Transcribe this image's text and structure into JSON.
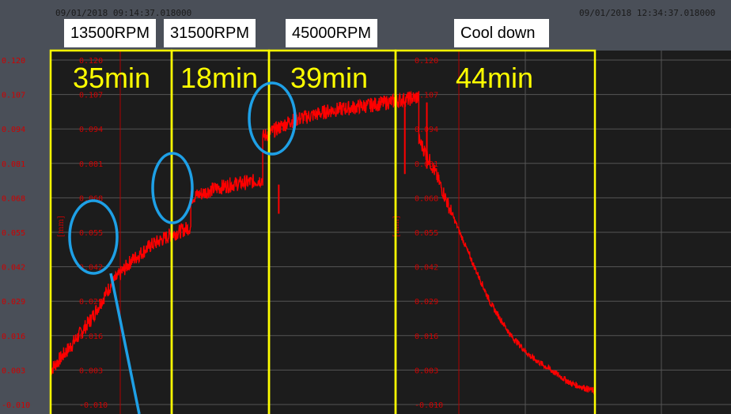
{
  "timestamps": {
    "start": "09/01/2018 09:14:37.018000",
    "end": "09/01/2018 12:34:37.018000"
  },
  "phases": [
    {
      "label": "13500RPM",
      "duration": "35min"
    },
    {
      "label": "31500RPM",
      "duration": "18min"
    },
    {
      "label": "45000RPM",
      "duration": "39min"
    },
    {
      "label": "Cool down",
      "duration": "44min"
    }
  ],
  "axis": {
    "outer_ticks": [
      "0.120",
      "0.107",
      "0.094",
      "0.081",
      "0.068",
      "0.055",
      "0.042",
      "0.029",
      "0.016",
      "0.003",
      "-0.010"
    ],
    "inner_ticks": [
      "0.120",
      "0.107",
      "0.094",
      "0.081",
      "0.068",
      "0.055",
      "0.042",
      "0.029",
      "0.016",
      "0.003",
      "-0.010"
    ],
    "unit": "[mm]"
  },
  "colors": {
    "trace": "#ff0000",
    "phase_box": "#ffff00",
    "highlight_circle": "#1ea0e6",
    "grid": "#555555",
    "plot_bg": "#1c1c1c"
  },
  "chart_data": {
    "type": "line",
    "ylim": [
      -0.01,
      0.12
    ],
    "ylabel": "[mm]",
    "series": [
      {
        "points": [
          [
            0,
            0.003
          ],
          [
            5,
            0.012
          ],
          [
            10,
            0.022
          ],
          [
            15,
            0.035
          ],
          [
            20,
            0.044
          ],
          [
            25,
            0.05
          ],
          [
            30,
            0.054
          ],
          [
            35,
            0.057
          ],
          [
            35,
            0.068
          ],
          [
            40,
            0.071
          ],
          [
            45,
            0.073
          ],
          [
            50,
            0.074
          ],
          [
            53,
            0.075
          ],
          [
            53,
            0.091
          ],
          [
            60,
            0.097
          ],
          [
            70,
            0.101
          ],
          [
            80,
            0.103
          ],
          [
            92,
            0.106
          ],
          [
            92,
            0.09
          ],
          [
            96,
            0.078
          ],
          [
            100,
            0.063
          ],
          [
            105,
            0.045
          ],
          [
            110,
            0.028
          ],
          [
            115,
            0.016
          ],
          [
            120,
            0.008
          ],
          [
            125,
            0.003
          ],
          [
            130,
            -0.002
          ],
          [
            136,
            -0.005
          ]
        ]
      }
    ]
  }
}
